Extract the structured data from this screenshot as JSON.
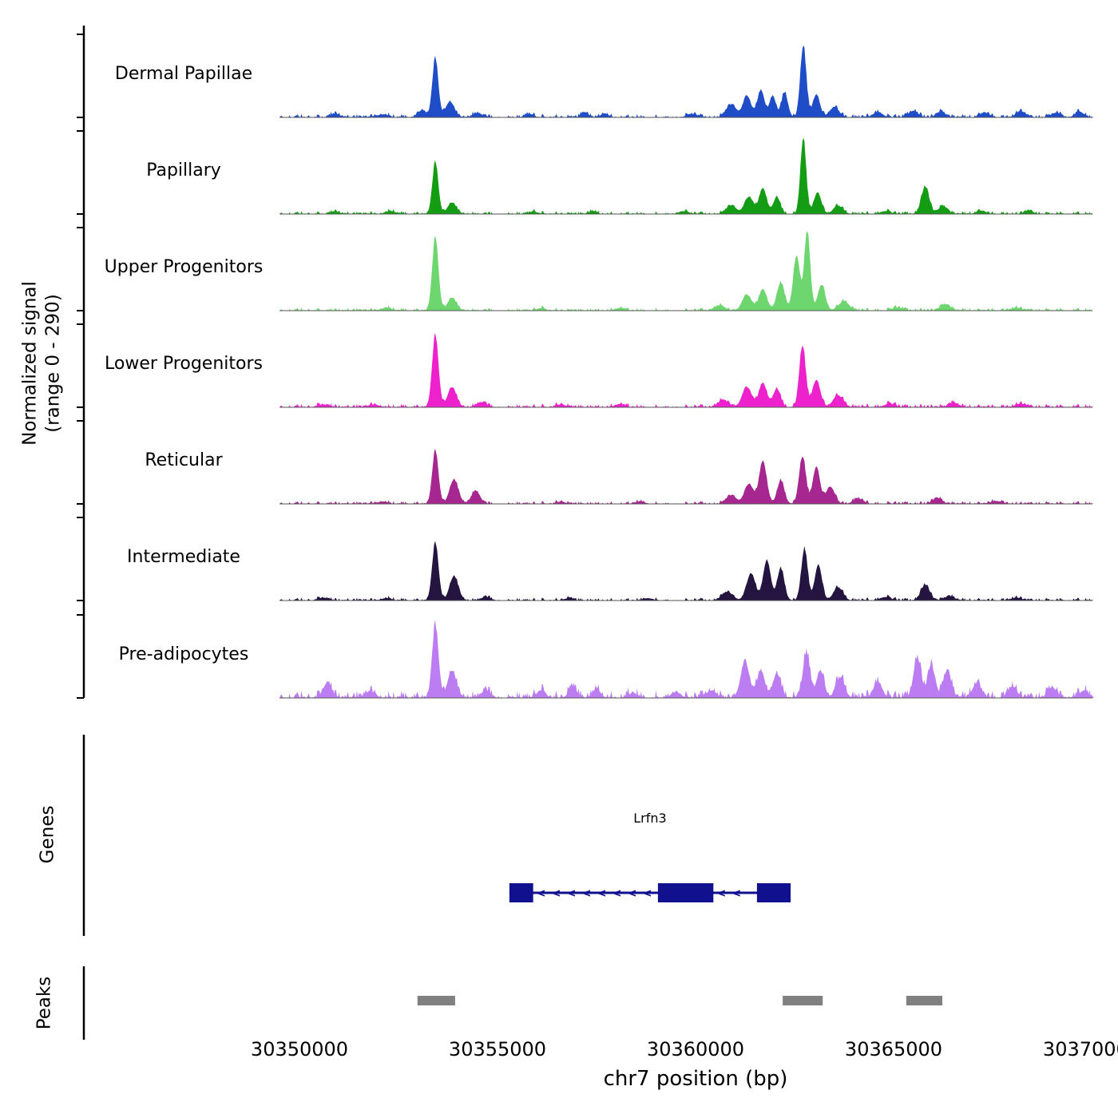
{
  "labels": {
    "ylabel_line1": "Normalized signal",
    "ylabel_line2": "(range 0 - 290)",
    "genes_section": "Genes",
    "peaks_section": "Peaks",
    "xlabel": "chr7 position (bp)",
    "gene_name": "Lrfn3"
  },
  "chart_data": {
    "type": "area",
    "xlabel": "chr7 position (bp)",
    "ylabel": "Normalized signal (range 0 - 290)",
    "x_range": [
      30349500,
      30370050
    ],
    "x_ticks": [
      30350000,
      30355000,
      30360000,
      30365000,
      30370000
    ],
    "y_range_per_track": [
      0,
      290
    ],
    "tracks": [
      {
        "name": "Dermal Papillae",
        "slug": "dermal-papillae",
        "color": "#1f4cc7",
        "noise": 6,
        "peaks": [
          [
            30350900,
            12,
            120
          ],
          [
            30352100,
            10,
            150
          ],
          [
            30353100,
            25,
            100
          ],
          [
            30353430,
            205,
            75
          ],
          [
            30353800,
            55,
            110
          ],
          [
            30354500,
            15,
            120
          ],
          [
            30355800,
            12,
            100
          ],
          [
            30357200,
            18,
            90
          ],
          [
            30357700,
            14,
            90
          ],
          [
            30359900,
            12,
            120
          ],
          [
            30360900,
            45,
            130
          ],
          [
            30361300,
            75,
            100
          ],
          [
            30361650,
            95,
            90
          ],
          [
            30361950,
            75,
            80
          ],
          [
            30362250,
            85,
            80
          ],
          [
            30362720,
            250,
            75
          ],
          [
            30363050,
            80,
            90
          ],
          [
            30363500,
            35,
            120
          ],
          [
            30364600,
            18,
            120
          ],
          [
            30365500,
            22,
            120
          ],
          [
            30366200,
            20,
            110
          ],
          [
            30367300,
            15,
            120
          ],
          [
            30368200,
            22,
            110
          ],
          [
            30369100,
            15,
            120
          ],
          [
            30369700,
            20,
            100
          ]
        ]
      },
      {
        "name": "Papillary",
        "slug": "papillary",
        "color": "#149c14",
        "noise": 5,
        "peaks": [
          [
            30350900,
            8,
            120
          ],
          [
            30352300,
            10,
            130
          ],
          [
            30353430,
            180,
            75
          ],
          [
            30353850,
            40,
            110
          ],
          [
            30355900,
            8,
            110
          ],
          [
            30357400,
            10,
            100
          ],
          [
            30359700,
            10,
            120
          ],
          [
            30360900,
            30,
            130
          ],
          [
            30361350,
            60,
            110
          ],
          [
            30361700,
            90,
            95
          ],
          [
            30362050,
            60,
            85
          ],
          [
            30362720,
            265,
            72
          ],
          [
            30363080,
            75,
            95
          ],
          [
            30363600,
            28,
            120
          ],
          [
            30364800,
            10,
            120
          ],
          [
            30365800,
            95,
            100
          ],
          [
            30366250,
            28,
            110
          ],
          [
            30367200,
            10,
            120
          ],
          [
            30368400,
            10,
            120
          ]
        ]
      },
      {
        "name": "Upper Progenitors",
        "slug": "upper-progenitors",
        "color": "#6ed66e",
        "noise": 5,
        "peaks": [
          [
            30352200,
            10,
            130
          ],
          [
            30353430,
            255,
            78
          ],
          [
            30353850,
            45,
            110
          ],
          [
            30356100,
            8,
            110
          ],
          [
            30358100,
            10,
            110
          ],
          [
            30360600,
            18,
            130
          ],
          [
            30361300,
            55,
            120
          ],
          [
            30361700,
            75,
            100
          ],
          [
            30362150,
            95,
            100
          ],
          [
            30362550,
            190,
            85
          ],
          [
            30362820,
            275,
            75
          ],
          [
            30363180,
            90,
            95
          ],
          [
            30363750,
            32,
            130
          ],
          [
            30365100,
            10,
            130
          ],
          [
            30366300,
            22,
            120
          ],
          [
            30368100,
            10,
            130
          ]
        ]
      },
      {
        "name": "Lower Progenitors",
        "slug": "lower-progenitors",
        "color": "#ee22cc",
        "noise": 6,
        "peaks": [
          [
            30350600,
            10,
            120
          ],
          [
            30351900,
            8,
            130
          ],
          [
            30353430,
            250,
            80
          ],
          [
            30353850,
            70,
            110
          ],
          [
            30354600,
            18,
            120
          ],
          [
            30356600,
            10,
            120
          ],
          [
            30358100,
            12,
            120
          ],
          [
            30360700,
            25,
            140
          ],
          [
            30361300,
            70,
            120
          ],
          [
            30361700,
            85,
            100
          ],
          [
            30362050,
            65,
            90
          ],
          [
            30362700,
            215,
            80
          ],
          [
            30363050,
            95,
            100
          ],
          [
            30363600,
            40,
            130
          ],
          [
            30364900,
            12,
            130
          ],
          [
            30366500,
            15,
            120
          ],
          [
            30368200,
            12,
            130
          ]
        ]
      },
      {
        "name": "Reticular",
        "slug": "reticular",
        "color": "#a5278f",
        "noise": 5,
        "peaks": [
          [
            30352100,
            8,
            130
          ],
          [
            30353430,
            185,
            78
          ],
          [
            30353900,
            85,
            110
          ],
          [
            30354450,
            45,
            110
          ],
          [
            30356600,
            8,
            110
          ],
          [
            30358600,
            8,
            120
          ],
          [
            30360900,
            30,
            130
          ],
          [
            30361350,
            70,
            110
          ],
          [
            30361700,
            150,
            95
          ],
          [
            30362150,
            80,
            90
          ],
          [
            30362700,
            165,
            85
          ],
          [
            30363050,
            130,
            90
          ],
          [
            30363400,
            60,
            110
          ],
          [
            30364100,
            18,
            120
          ],
          [
            30366100,
            20,
            120
          ],
          [
            30367600,
            10,
            130
          ]
        ]
      },
      {
        "name": "Intermediate",
        "slug": "intermediate",
        "color": "#231440",
        "noise": 5,
        "peaks": [
          [
            30350600,
            10,
            120
          ],
          [
            30352200,
            8,
            130
          ],
          [
            30353430,
            200,
            80
          ],
          [
            30353900,
            85,
            110
          ],
          [
            30354700,
            12,
            120
          ],
          [
            30356800,
            8,
            120
          ],
          [
            30358800,
            8,
            120
          ],
          [
            30360800,
            30,
            140
          ],
          [
            30361400,
            95,
            110
          ],
          [
            30361800,
            140,
            95
          ],
          [
            30362150,
            110,
            90
          ],
          [
            30362750,
            180,
            80
          ],
          [
            30363100,
            125,
            90
          ],
          [
            30363600,
            45,
            120
          ],
          [
            30364800,
            12,
            130
          ],
          [
            30365800,
            55,
            110
          ],
          [
            30366400,
            15,
            120
          ],
          [
            30368100,
            10,
            130
          ]
        ]
      },
      {
        "name": "Pre-adipocytes",
        "slug": "pre-adipocytes",
        "color": "#bc7df2",
        "noise": 13,
        "peaks": [
          [
            30350700,
            50,
            110
          ],
          [
            30351800,
            20,
            120
          ],
          [
            30353430,
            250,
            80
          ],
          [
            30353850,
            95,
            110
          ],
          [
            30354700,
            25,
            120
          ],
          [
            30356100,
            25,
            110
          ],
          [
            30356900,
            40,
            100
          ],
          [
            30357500,
            30,
            100
          ],
          [
            30358400,
            15,
            120
          ],
          [
            30359500,
            20,
            120
          ],
          [
            30360400,
            25,
            130
          ],
          [
            30361250,
            125,
            110
          ],
          [
            30361650,
            95,
            100
          ],
          [
            30362050,
            85,
            95
          ],
          [
            30362800,
            155,
            90
          ],
          [
            30363150,
            95,
            95
          ],
          [
            30363650,
            70,
            110
          ],
          [
            30364600,
            55,
            110
          ],
          [
            30365600,
            140,
            95
          ],
          [
            30365950,
            115,
            90
          ],
          [
            30366350,
            95,
            100
          ],
          [
            30367100,
            50,
            110
          ],
          [
            30368000,
            40,
            110
          ],
          [
            30369000,
            35,
            110
          ],
          [
            30369800,
            25,
            110
          ]
        ]
      }
    ],
    "gene": {
      "name": "Lrfn3",
      "chrom": "chr7",
      "start": 30355300,
      "end": 30362400,
      "strand": "-",
      "color": "#11118f",
      "exons": [
        [
          30355300,
          30355900
        ],
        [
          30359050,
          30360450
        ],
        [
          30361550,
          30362400
        ]
      ]
    },
    "peak_regions": {
      "color": "#808080",
      "regions": [
        [
          30352980,
          30353930
        ],
        [
          30362200,
          30363210
        ],
        [
          30365320,
          30366230
        ]
      ]
    }
  }
}
